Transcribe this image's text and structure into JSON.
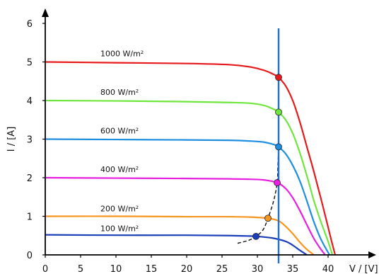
{
  "chart_data": {
    "type": "line",
    "title": "",
    "xlabel": "V / [V]",
    "ylabel": "I / [A]",
    "xlim": [
      0,
      43
    ],
    "ylim": [
      0,
      6
    ],
    "xticks": [
      0,
      5,
      10,
      15,
      20,
      25,
      30,
      35,
      40
    ],
    "yticks": [
      0,
      1,
      2,
      3,
      4,
      5,
      6
    ],
    "grid": false,
    "series": [
      {
        "name": "1000 W/m²",
        "color": "#e8191b",
        "isc": 5.0,
        "voc": 41.0,
        "mpp": [
          33.0,
          4.6
        ],
        "x": [
          0,
          10,
          20,
          26,
          29,
          31,
          32.5,
          33.0,
          34,
          35,
          36,
          37,
          38,
          39,
          40,
          40.5,
          41.0
        ],
        "y": [
          5.0,
          4.98,
          4.96,
          4.93,
          4.87,
          4.78,
          4.66,
          4.6,
          4.38,
          4.0,
          3.45,
          2.8,
          2.15,
          1.45,
          0.72,
          0.35,
          0.0
        ]
      },
      {
        "name": "800 W/m²",
        "color": "#6ee63c",
        "isc": 4.0,
        "voc": 40.6,
        "mpp": [
          33.0,
          3.7
        ],
        "x": [
          0,
          10,
          20,
          26,
          29,
          31,
          32.5,
          33.0,
          34,
          35,
          36,
          37,
          38,
          39,
          40,
          40.6
        ],
        "y": [
          4.0,
          3.99,
          3.97,
          3.95,
          3.93,
          3.87,
          3.76,
          3.7,
          3.5,
          3.15,
          2.65,
          2.05,
          1.4,
          0.85,
          0.35,
          0.0
        ]
      },
      {
        "name": "600 W/m²",
        "color": "#1d8ee0",
        "isc": 3.0,
        "voc": 40.2,
        "mpp": [
          33.0,
          2.8
        ],
        "x": [
          0,
          10,
          20,
          26,
          29,
          31,
          32.5,
          33.0,
          34,
          35,
          36,
          37,
          38,
          39,
          40.2
        ],
        "y": [
          3.0,
          2.99,
          2.98,
          2.97,
          2.95,
          2.92,
          2.85,
          2.8,
          2.62,
          2.32,
          1.92,
          1.4,
          0.85,
          0.4,
          0.0
        ]
      },
      {
        "name": "400 W/m²",
        "color": "#e61fe0",
        "isc": 2.0,
        "voc": 39.6,
        "mpp": [
          32.8,
          1.87
        ],
        "x": [
          0,
          10,
          20,
          26,
          29,
          31,
          32.8,
          34,
          35,
          36,
          37,
          38,
          39,
          39.6
        ],
        "y": [
          2.0,
          1.99,
          1.98,
          1.97,
          1.96,
          1.94,
          1.87,
          1.72,
          1.48,
          1.15,
          0.78,
          0.42,
          0.14,
          0.0
        ]
      },
      {
        "name": "200 W/m²",
        "color": "#f7951d",
        "isc": 1.0,
        "voc": 38.0,
        "mpp": [
          31.5,
          0.95
        ],
        "x": [
          0,
          10,
          20,
          26,
          29,
          31.5,
          33,
          34,
          35,
          36,
          37,
          38.0
        ],
        "y": [
          1.0,
          1.0,
          0.99,
          0.99,
          0.98,
          0.95,
          0.88,
          0.74,
          0.55,
          0.33,
          0.14,
          0.0
        ]
      },
      {
        "name": "100 W/m²",
        "color": "#1b3fbb",
        "isc": 0.52,
        "voc": 37.0,
        "mpp": [
          29.8,
          0.48
        ],
        "x": [
          0,
          10,
          20,
          26,
          28.5,
          29.8,
          32,
          34,
          35,
          36,
          37.0
        ],
        "y": [
          0.52,
          0.51,
          0.51,
          0.5,
          0.49,
          0.48,
          0.44,
          0.35,
          0.25,
          0.12,
          0.0
        ]
      }
    ],
    "mpp_locus": {
      "x": [
        27.2,
        28.8,
        29.8,
        30.8,
        31.5,
        32.3,
        32.8,
        32.9,
        33.0,
        33.0,
        33.0,
        33.0
      ],
      "y": [
        0.3,
        0.38,
        0.48,
        0.65,
        0.95,
        1.4,
        1.87,
        2.3,
        2.8,
        3.7,
        4.6,
        5.15
      ]
    },
    "vertical_line": {
      "x": 33.0,
      "color": "#1d6fe0"
    }
  }
}
